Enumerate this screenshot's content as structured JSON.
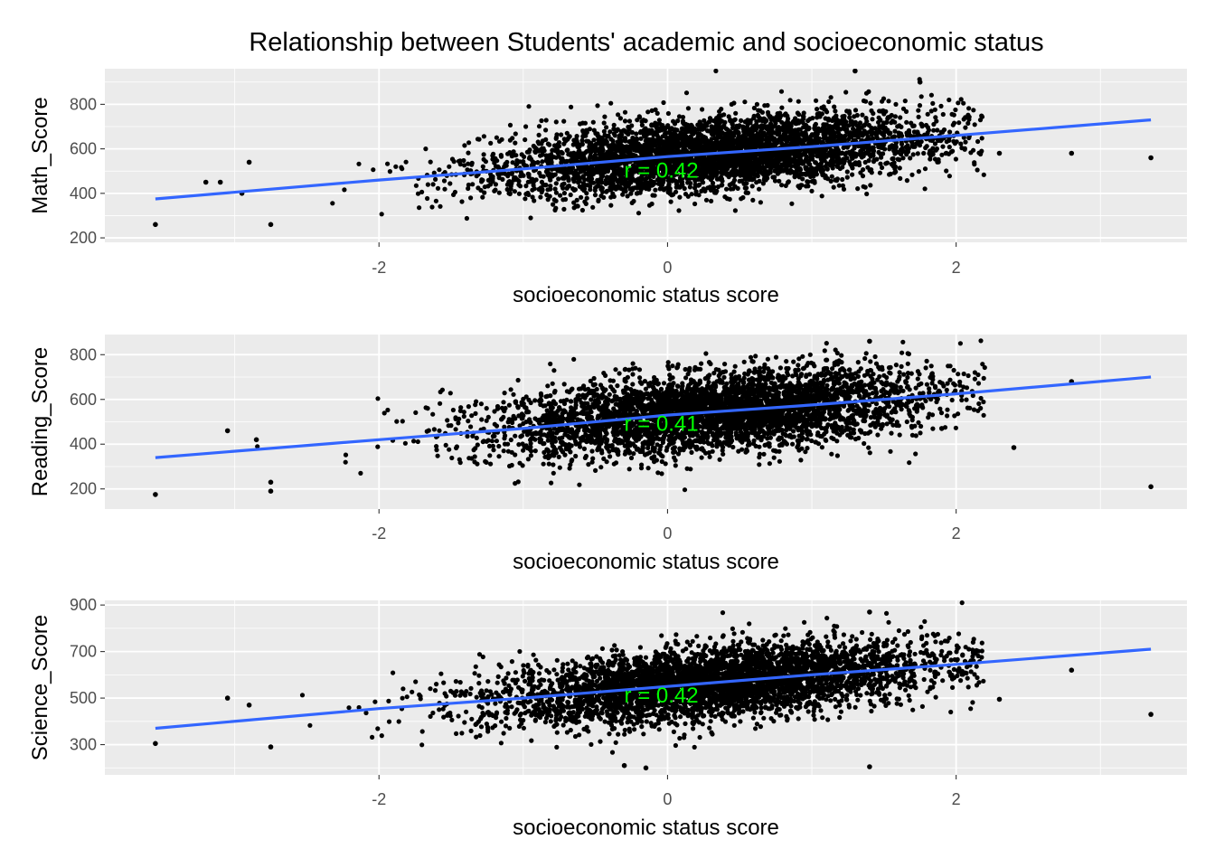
{
  "figure_title": "Relationship between Students' academic and socioeconomic status",
  "colors": {
    "panel_bg": "#ebebeb",
    "grid": "#ffffff",
    "points": "#000000",
    "fit_line": "#3366ff",
    "annotation": "#00ff00",
    "tick_label": "#4d4d4d"
  },
  "chart_data": [
    {
      "type": "scatter",
      "title": "",
      "xlabel": "socioeconomic status score",
      "ylabel": "Math_Score",
      "xlim": [
        -3.9,
        3.6
      ],
      "ylim": [
        180,
        960
      ],
      "x_ticks": [
        -2,
        0,
        2
      ],
      "x_tick_labels": [
        "-2",
        "0",
        "2"
      ],
      "y_ticks": [
        200,
        400,
        600,
        800
      ],
      "y_tick_labels": [
        "200",
        "400",
        "600",
        "800"
      ],
      "grid": true,
      "cloud": {
        "x_center": 0.3,
        "x_sd": 0.75,
        "y_center": 560,
        "y_sd": 85,
        "n": 4200,
        "seed": 11
      },
      "extra_points": [
        [
          -3.55,
          260
        ],
        [
          -2.75,
          260
        ],
        [
          -2.95,
          400
        ],
        [
          -2.9,
          540
        ],
        [
          -3.1,
          450
        ],
        [
          -3.2,
          450
        ],
        [
          2.8,
          580
        ],
        [
          3.35,
          560
        ],
        [
          2.3,
          580
        ],
        [
          1.75,
          900
        ],
        [
          1.3,
          950
        ]
      ],
      "fit_line": [
        [
          -3.55,
          375
        ],
        [
          -2,
          460
        ],
        [
          -1,
          510
        ],
        [
          0,
          565
        ],
        [
          1,
          610
        ],
        [
          2,
          660
        ],
        [
          3.35,
          730
        ]
      ],
      "annotation": {
        "text": "r = 0.42",
        "x": -0.3,
        "y": 470
      }
    },
    {
      "type": "scatter",
      "title": "",
      "xlabel": "socioeconomic status score",
      "ylabel": "Reading_Score",
      "xlim": [
        -3.9,
        3.6
      ],
      "ylim": [
        110,
        890
      ],
      "x_ticks": [
        -2,
        0,
        2
      ],
      "x_tick_labels": [
        "-2",
        "0",
        "2"
      ],
      "y_ticks": [
        200,
        400,
        600,
        800
      ],
      "y_tick_labels": [
        "200",
        "400",
        "600",
        "800"
      ],
      "grid": true,
      "cloud": {
        "x_center": 0.3,
        "x_sd": 0.75,
        "y_center": 540,
        "y_sd": 90,
        "n": 4200,
        "seed": 23
      },
      "extra_points": [
        [
          -3.55,
          175
        ],
        [
          -2.75,
          190
        ],
        [
          -2.75,
          230
        ],
        [
          -3.05,
          460
        ],
        [
          -2.85,
          420
        ],
        [
          2.4,
          385
        ],
        [
          3.35,
          210
        ],
        [
          2.8,
          680
        ],
        [
          1.9,
          470
        ],
        [
          1.4,
          860
        ]
      ],
      "fit_line": [
        [
          -3.55,
          340
        ],
        [
          -2,
          420
        ],
        [
          -1,
          470
        ],
        [
          0,
          530
        ],
        [
          1,
          575
        ],
        [
          2,
          625
        ],
        [
          3.35,
          700
        ]
      ],
      "annotation": {
        "text": "r = 0.41",
        "x": -0.3,
        "y": 460
      }
    },
    {
      "type": "scatter",
      "title": "",
      "xlabel": "socioeconomic status score",
      "ylabel": "Science_Score",
      "xlim": [
        -3.9,
        3.6
      ],
      "ylim": [
        170,
        920
      ],
      "x_ticks": [
        -2,
        0,
        2
      ],
      "x_tick_labels": [
        "-2",
        "0",
        "2"
      ],
      "y_ticks": [
        300,
        500,
        700,
        900
      ],
      "y_tick_labels": [
        "300",
        "500",
        "700",
        "900"
      ],
      "grid": true,
      "cloud": {
        "x_center": 0.3,
        "x_sd": 0.75,
        "y_center": 560,
        "y_sd": 80,
        "n": 4200,
        "seed": 37
      },
      "extra_points": [
        [
          -3.55,
          305
        ],
        [
          -2.75,
          290
        ],
        [
          -3.05,
          500
        ],
        [
          -2.9,
          470
        ],
        [
          2.8,
          620
        ],
        [
          3.35,
          430
        ],
        [
          2.3,
          495
        ],
        [
          1.4,
          205
        ],
        [
          -0.15,
          200
        ],
        [
          -0.3,
          210
        ],
        [
          1.4,
          870
        ]
      ],
      "fit_line": [
        [
          -3.55,
          370
        ],
        [
          -2,
          455
        ],
        [
          -1,
          500
        ],
        [
          0,
          550
        ],
        [
          1,
          600
        ],
        [
          2,
          645
        ],
        [
          3.35,
          710
        ]
      ],
      "annotation": {
        "text": "r = 0.42",
        "x": -0.3,
        "y": 480
      }
    }
  ]
}
